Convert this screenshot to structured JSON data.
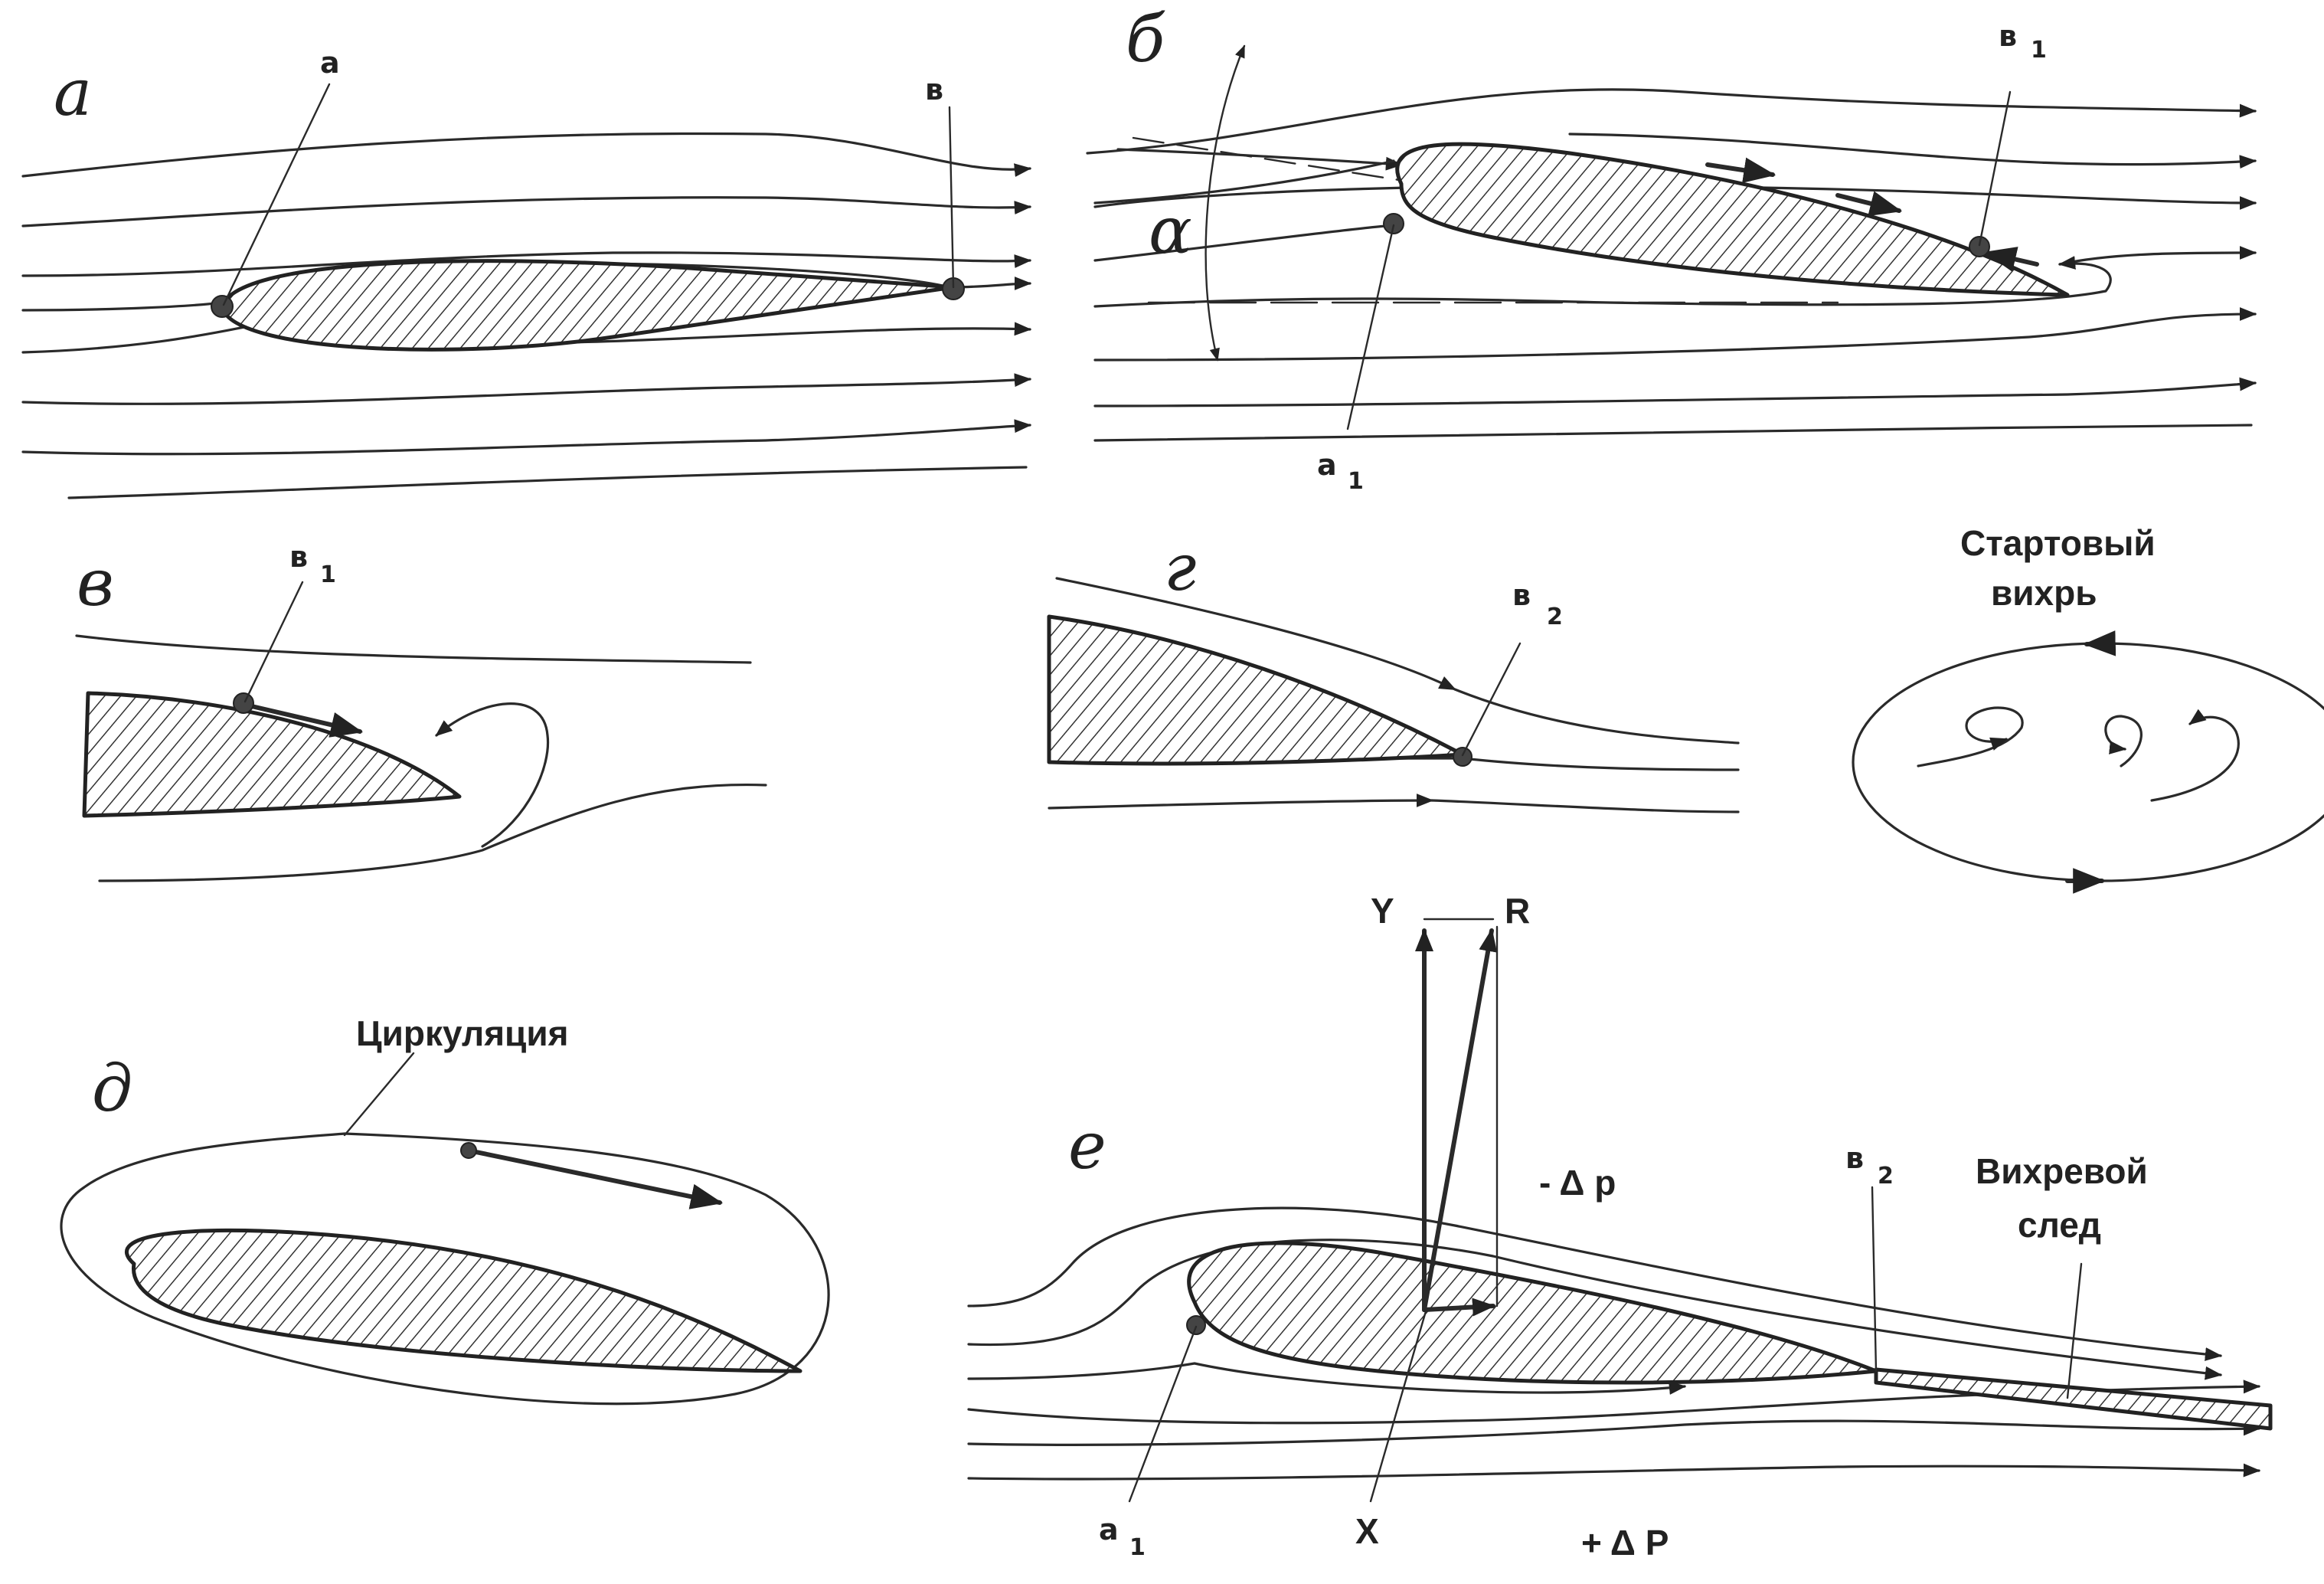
{
  "panels": {
    "a": "а",
    "b": "б",
    "v": "в",
    "g": "г",
    "d": "д",
    "e": "е"
  },
  "points": {
    "a": "а",
    "v": "в",
    "a_base": "а",
    "a_sub": "1",
    "v_base": "в",
    "v1_sub": "1",
    "v2_sub": "2"
  },
  "angle": "α",
  "captions": {
    "start_vortex_line1": "Стартовый",
    "start_vortex_line2": "вихрь",
    "circulation": "Циркуляция",
    "wake_line1": "Вихревой",
    "wake_line2": "след"
  },
  "forces": {
    "lift": "Y",
    "resultant": "R",
    "drag": "X",
    "minus_dp": "- Δ p",
    "plus_dp": "+ Δ P"
  }
}
